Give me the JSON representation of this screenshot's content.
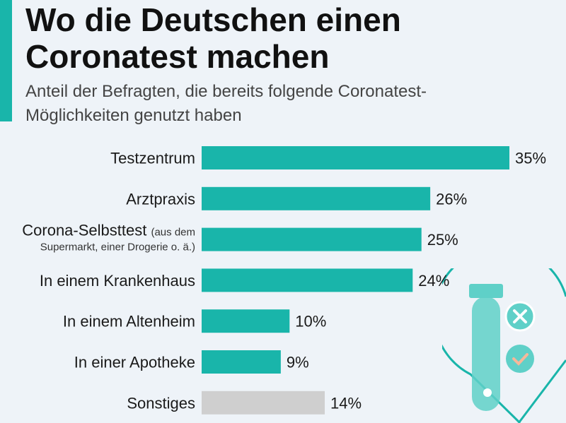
{
  "header": {
    "title": "Wo die Deutschen einen Coronatest machen",
    "subtitle": "Anteil der Befragten, die bereits folgende Coronatest-Möglichkeiten genutzt haben"
  },
  "colors": {
    "accent": "#19b5aa",
    "bar": "#19b5aa",
    "bar_other": "#cfcfcf",
    "background": "#eef3f8"
  },
  "decoration": {
    "icon": "test-tube-icon"
  },
  "chart_data": {
    "type": "bar",
    "orientation": "horizontal",
    "title": "Wo die Deutschen einen Coronatest machen",
    "subtitle": "Anteil der Befragten, die bereits folgende Coronatest-Möglichkeiten genutzt haben",
    "xlabel": "",
    "ylabel": "",
    "xlim": [
      0,
      35
    ],
    "grid": false,
    "categories": [
      {
        "label": "Testzentrum",
        "note": ""
      },
      {
        "label": "Arztpraxis",
        "note": ""
      },
      {
        "label": "Corona-Selbsttest",
        "note": "(aus dem",
        "note2": "Supermarkt, einer Drogerie o. ä.)"
      },
      {
        "label": "In einem Krankenhaus",
        "note": ""
      },
      {
        "label": "In einem Altenheim",
        "note": ""
      },
      {
        "label": "In einer Apotheke",
        "note": ""
      },
      {
        "label": "Sonstiges",
        "note": ""
      }
    ],
    "values": [
      35,
      26,
      25,
      24,
      10,
      9,
      14
    ],
    "value_labels": [
      "35%",
      "26%",
      "25%",
      "24%",
      "10%",
      "9%",
      "14%"
    ],
    "highlight": [
      false,
      false,
      false,
      false,
      false,
      false,
      true
    ]
  }
}
